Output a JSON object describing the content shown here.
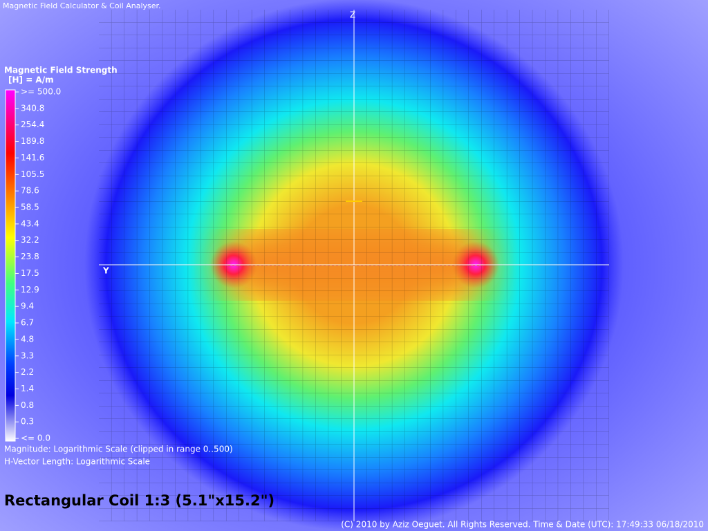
{
  "app_title": "Magnetic Field Calculator & Coil Analyser.",
  "legend": {
    "title": "Magnetic Field Strength",
    "unit": "[H] = A/m",
    "labels": [
      ">= 500.0",
      "340.8",
      "254.4",
      "189.8",
      "141.6",
      "105.5",
      "78.6",
      "58.5",
      "43.4",
      "32.2",
      "23.8",
      "17.5",
      "12.9",
      "9.4",
      "6.7",
      "4.8",
      "3.3",
      "2.2",
      "1.4",
      "0.8",
      "0.3",
      "<= 0.0"
    ]
  },
  "notes": [
    "Magnitude: Logarithmic Scale (clipped in range 0..500)",
    "H-Vector Length: Logarithmic Scale"
  ],
  "axes": {
    "z": "Z",
    "y": "Y"
  },
  "coil_title": "Rectangular Coil 1:3 (5.1\"x15.2\")",
  "footer": "(C) 2010 by Aziz Oeguet. All Rights Reserved.  Time & Date (UTC): 17:49:33  06/18/2010"
}
